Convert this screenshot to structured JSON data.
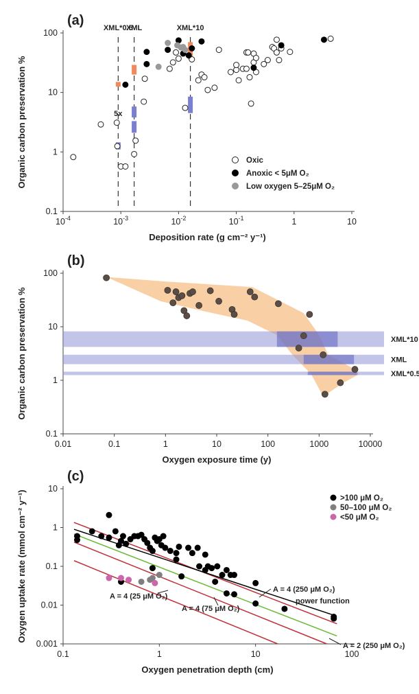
{
  "chart_data": [
    {
      "panel": "(a)",
      "type": "scatter",
      "xlabel": "Deposition rate (g cm⁻² y⁻¹)",
      "ylabel": "Organic carbon preservation %",
      "x_scale": "log",
      "y_scale": "log",
      "xlim": [
        0.0001,
        10
      ],
      "ylim": [
        0.1,
        100
      ],
      "x_ticks": [
        {
          "v": 0.0001,
          "b": "10",
          "e": "-4"
        },
        {
          "v": 0.001,
          "b": "10",
          "e": "-3"
        },
        {
          "v": 0.01,
          "b": "10",
          "e": "-2"
        },
        {
          "v": 0.1,
          "b": "10",
          "e": "-1"
        },
        {
          "v": 1,
          "b": "1",
          "e": ""
        },
        {
          "v": 10,
          "b": "10",
          "e": ""
        }
      ],
      "y_ticks": [
        {
          "v": 0.1,
          "l": "0.1"
        },
        {
          "v": 1,
          "l": "1"
        },
        {
          "v": 10,
          "l": "10"
        },
        {
          "v": 100,
          "l": "100"
        }
      ],
      "vlines": [
        {
          "x": 0.0009,
          "label": "XML*0.5"
        },
        {
          "x": 0.0017,
          "label": "XML"
        },
        {
          "x": 0.016,
          "label": "XML*10"
        }
      ],
      "bars": [
        {
          "x": 0.0009,
          "y0": 12.5,
          "y1": 15,
          "color": "#f08a5d"
        },
        {
          "x": 0.0017,
          "y0": 20,
          "y1": 29,
          "color": "#f08a5d"
        },
        {
          "x": 0.016,
          "y0": 36,
          "y1": 70,
          "color": "#f08a5d"
        },
        {
          "x": 0.0009,
          "y0": 1.1,
          "y1": 1.45,
          "color": "#7b7fcf"
        },
        {
          "x": 0.0017,
          "y0": 2.1,
          "y1": 3.3,
          "color": "#7b7fcf"
        },
        {
          "x": 0.0017,
          "y0": 3.8,
          "y1": 5.8,
          "color": "#7b7fcf"
        },
        {
          "x": 0.016,
          "y0": 4.5,
          "y1": 8.5,
          "color": "#7b7fcf"
        }
      ],
      "annotation": {
        "text": "5x",
        "x": 0.00125,
        "y": 4.6
      },
      "legend": [
        "Oxic",
        "Anoxic < 5μM O₂",
        "Low oxygen 5–25μM O₂"
      ],
      "legend_position": "bottom-right",
      "series": [
        {
          "name": "Oxic",
          "style": "open",
          "points": [
            [
              0.00015,
              0.82
            ],
            [
              0.00045,
              2.9
            ],
            [
              0.00085,
              3.1
            ],
            [
              0.00087,
              1.25
            ],
            [
              0.001,
              0.57
            ],
            [
              0.0012,
              0.57
            ],
            [
              0.0017,
              0.92
            ],
            [
              0.0018,
              1.55
            ],
            [
              0.0025,
              7
            ],
            [
              0.0026,
              17
            ],
            [
              0.007,
              25
            ],
            [
              0.008,
              32
            ],
            [
              0.01,
              37
            ],
            [
              0.009,
              47
            ],
            [
              0.013,
              5.5
            ],
            [
              0.017,
              36
            ],
            [
              0.022,
              16
            ],
            [
              0.025,
              20
            ],
            [
              0.028,
              18
            ],
            [
              0.032,
              11
            ],
            [
              0.042,
              12
            ],
            [
              0.05,
              52
            ],
            [
              0.08,
              22
            ],
            [
              0.1,
              24
            ],
            [
              0.1,
              29
            ],
            [
              0.11,
              16
            ],
            [
              0.13,
              25
            ],
            [
              0.15,
              25
            ],
            [
              0.15,
              47
            ],
            [
              0.16,
              47
            ],
            [
              0.17,
              18
            ],
            [
              0.18,
              6.5
            ],
            [
              0.2,
              32
            ],
            [
              0.2,
              45
            ],
            [
              0.22,
              38
            ],
            [
              0.22,
              22
            ],
            [
              0.3,
              30
            ],
            [
              0.35,
              35
            ],
            [
              0.42,
              58
            ],
            [
              0.45,
              55
            ],
            [
              0.5,
              47
            ],
            [
              0.5,
              77
            ],
            [
              0.55,
              35
            ],
            [
              0.6,
              55
            ],
            [
              0.85,
              48
            ],
            [
              4.3,
              80
            ]
          ]
        },
        {
          "name": "Anoxic < 5μM O₂",
          "style": "filled",
          "points": [
            [
              0.0012,
              13.5
            ],
            [
              0.0028,
              48
            ],
            [
              0.0028,
              30
            ],
            [
              0.0065,
              52
            ],
            [
              0.01,
              75
            ],
            [
              0.012,
              45
            ],
            [
              0.015,
              42
            ],
            [
              0.017,
              55
            ],
            [
              0.025,
              72
            ],
            [
              0.2,
              26
            ],
            [
              0.6,
              62
            ],
            [
              3.3,
              77
            ]
          ]
        },
        {
          "name": "Low oxygen 5–25μM O₂",
          "style": "gray",
          "points": [
            [
              0.0045,
              27
            ],
            [
              0.0065,
              68
            ],
            [
              0.0095,
              62
            ],
            [
              0.011,
              57
            ],
            [
              0.012,
              58
            ],
            [
              0.013,
              52
            ]
          ]
        }
      ]
    },
    {
      "panel": "(b)",
      "type": "scatter",
      "xlabel": "Oxygen exposure time (y)",
      "ylabel": "Organic carbon preservation %",
      "x_scale": "log",
      "y_scale": "log",
      "xlim": [
        0.01,
        10000
      ],
      "ylim": [
        0.1,
        100
      ],
      "x_ticks": [
        {
          "v": 0.01,
          "l": "0.01"
        },
        {
          "v": 0.1,
          "l": "0.1"
        },
        {
          "v": 1,
          "l": "1"
        },
        {
          "v": 10,
          "l": "10"
        },
        {
          "v": 100,
          "l": "100"
        },
        {
          "v": 1000,
          "l": "1000"
        },
        {
          "v": 10000,
          "l": "10000"
        }
      ],
      "y_ticks": [
        {
          "v": 0.1,
          "l": "0.1"
        },
        {
          "v": 1,
          "l": "1"
        },
        {
          "v": 10,
          "l": "10"
        },
        {
          "v": 100,
          "l": "100"
        }
      ],
      "bands": [
        {
          "label": "XML*10",
          "y0": 4.2,
          "y1": 8.2
        },
        {
          "label": "XML",
          "y0": 2.0,
          "y1": 3.0
        },
        {
          "label": "XML*0.5",
          "y0": 1.25,
          "y1": 1.45
        }
      ],
      "band_dark": [
        {
          "x0": 150,
          "x1": 2300,
          "y0": 4.2,
          "y1": 8.2
        },
        {
          "x0": 500,
          "x1": 4800,
          "y0": 2.0,
          "y1": 3.0
        },
        {
          "x0": 600,
          "x1": 5500,
          "y0": 1.25,
          "y1": 1.45
        }
      ],
      "envelope": [
        [
          0.07,
          85
        ],
        [
          1,
          70
        ],
        [
          50,
          55
        ],
        [
          500,
          18
        ],
        [
          1000,
          7
        ],
        [
          1500,
          3
        ],
        [
          5000,
          1.6
        ],
        [
          6000,
          1.3
        ],
        [
          3000,
          0.9
        ],
        [
          1200,
          0.5
        ],
        [
          700,
          1.3
        ],
        [
          300,
          3
        ],
        [
          150,
          7
        ],
        [
          40,
          13
        ],
        [
          5,
          20
        ],
        [
          0.8,
          30
        ]
      ],
      "points": [
        [
          0.07,
          82
        ],
        [
          1.1,
          48
        ],
        [
          1.4,
          28
        ],
        [
          1.6,
          45
        ],
        [
          1.8,
          35
        ],
        [
          2.1,
          38
        ],
        [
          2.3,
          20
        ],
        [
          2.6,
          16
        ],
        [
          3,
          42
        ],
        [
          3.4,
          45
        ],
        [
          4.5,
          25
        ],
        [
          7.5,
          47
        ],
        [
          11,
          30
        ],
        [
          20,
          21
        ],
        [
          22,
          17
        ],
        [
          45,
          45
        ],
        [
          55,
          36
        ],
        [
          160,
          27
        ],
        [
          400,
          4
        ],
        [
          500,
          6.8
        ],
        [
          650,
          17
        ],
        [
          1200,
          3
        ],
        [
          1300,
          0.55
        ],
        [
          2600,
          0.9
        ],
        [
          5000,
          1.6
        ]
      ]
    },
    {
      "panel": "(c)",
      "type": "scatter",
      "xlabel": "Oxygen penetration depth (cm)",
      "ylabel": "Oxygen uptake rate (mmol cm⁻² y⁻¹)",
      "x_scale": "log",
      "y_scale": "log",
      "xlim": [
        0.1,
        100
      ],
      "ylim": [
        0.001,
        10
      ],
      "x_ticks": [
        {
          "v": 0.1,
          "l": "0.1"
        },
        {
          "v": 1,
          "l": "1"
        },
        {
          "v": 10,
          "l": "10"
        },
        {
          "v": 100,
          "l": "100"
        }
      ],
      "y_ticks": [
        {
          "v": 0.001,
          "l": "0.001"
        },
        {
          "v": 0.01,
          "l": "0.01"
        },
        {
          "v": 0.1,
          "l": "0.1"
        },
        {
          "v": 1,
          "l": "1"
        },
        {
          "v": 10,
          "l": "10"
        }
      ],
      "legend": [
        ">100 μM O₂",
        "50–100 μM O₂",
        "<50 μM O₂"
      ],
      "legend_position": "top-right",
      "lines": [
        {
          "label": "A = 4 (250 μM O₂)",
          "color": "#c0303a",
          "x0": 0.13,
          "y0": 1.35,
          "x1": 70,
          "y1": 0.0033
        },
        {
          "label": "power function",
          "color": "#000000",
          "x0": 0.13,
          "y0": 0.9,
          "x1": 65,
          "y1": 0.0055
        },
        {
          "label": "A = 2 (250 μM O₂)",
          "color": "#66bb33",
          "x0": 0.13,
          "y0": 0.68,
          "x1": 70,
          "y1": 0.0016
        },
        {
          "label": "A = 4 (75 μM O₂)",
          "color": "#c0303a",
          "x0": 0.13,
          "y0": 0.42,
          "x1": 55,
          "y1": 0.001
        },
        {
          "label": "A = 4 (25 μM O₂)",
          "color": "#c0303a",
          "x0": 0.13,
          "y0": 0.14,
          "x1": 17,
          "y1": 0.001
        }
      ],
      "series": [
        {
          "name": ">100 μM O₂",
          "color": "#000000",
          "points": [
            [
              0.14,
              0.6
            ],
            [
              0.14,
              0.48
            ],
            [
              0.2,
              0.8
            ],
            [
              0.25,
              0.6
            ],
            [
              0.3,
              2.1
            ],
            [
              0.3,
              0.55
            ],
            [
              0.35,
              0.8
            ],
            [
              0.38,
              0.35
            ],
            [
              0.4,
              0.45
            ],
            [
              0.42,
              0.6
            ],
            [
              0.45,
              0.38
            ],
            [
              0.5,
              0.5
            ],
            [
              0.55,
              0.6
            ],
            [
              0.6,
              0.6
            ],
            [
              0.65,
              0.65
            ],
            [
              0.7,
              0.5
            ],
            [
              0.75,
              0.4
            ],
            [
              0.8,
              0.3
            ],
            [
              0.85,
              0.25
            ],
            [
              0.9,
              0.55
            ],
            [
              0.95,
              0.45
            ],
            [
              1.0,
              0.5
            ],
            [
              1.05,
              0.35
            ],
            [
              1.1,
              0.6
            ],
            [
              1.15,
              0.3
            ],
            [
              1.3,
              0.25
            ],
            [
              1.5,
              0.22
            ],
            [
              1.5,
              0.15
            ],
            [
              1.6,
              0.32
            ],
            [
              1.7,
              0.055
            ],
            [
              2.0,
              0.3
            ],
            [
              2.2,
              0.22
            ],
            [
              2.5,
              0.3
            ],
            [
              2.6,
              0.1
            ],
            [
              3.0,
              0.2
            ],
            [
              3.0,
              0.08
            ],
            [
              3.2,
              0.1
            ],
            [
              3.5,
              0.09
            ],
            [
              3.8,
              0.04
            ],
            [
              4.0,
              0.1
            ],
            [
              4.5,
              0.06
            ],
            [
              5.0,
              0.08
            ],
            [
              5.0,
              0.02
            ],
            [
              5.5,
              0.06
            ],
            [
              6.0,
              0.06
            ],
            [
              6.0,
              0.019
            ],
            [
              10,
              0.037
            ],
            [
              10,
              0.011
            ],
            [
              20,
              0.008
            ],
            [
              65,
              0.005
            ],
            [
              65,
              0.0045
            ],
            [
              0.4,
              0.04
            ],
            [
              0.85,
              0.09
            ]
          ]
        },
        {
          "name": "50–100 μM O₂",
          "color": "#7f7f7f",
          "points": [
            [
              0.65,
              0.04
            ],
            [
              0.8,
              0.045
            ],
            [
              0.85,
              0.05
            ],
            [
              1.0,
              0.06
            ]
          ]
        },
        {
          "name": "<50 μM O₂",
          "color": "#cc66aa",
          "points": [
            [
              0.3,
              0.05
            ],
            [
              0.4,
              0.05
            ],
            [
              0.48,
              0.045
            ],
            [
              0.9,
              0.037
            ]
          ]
        }
      ]
    }
  ]
}
